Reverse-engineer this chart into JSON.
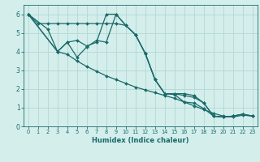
{
  "xlabel": "Humidex (Indice chaleur)",
  "xlim": [
    -0.5,
    23.5
  ],
  "ylim": [
    0,
    6.5
  ],
  "xticks": [
    0,
    1,
    2,
    3,
    4,
    5,
    6,
    7,
    8,
    9,
    10,
    11,
    12,
    13,
    14,
    15,
    16,
    17,
    18,
    19,
    20,
    21,
    22,
    23
  ],
  "yticks": [
    0,
    1,
    2,
    3,
    4,
    5,
    6
  ],
  "bg_color": "#d4eeec",
  "grid_color": "#b2d8d4",
  "line_color": "#1a6b6a",
  "lines": [
    {
      "x": [
        0,
        1,
        2,
        3,
        4,
        5,
        6,
        7,
        8,
        9,
        10,
        11,
        12,
        13,
        14,
        15,
        16,
        17,
        18,
        19,
        20,
        21,
        22,
        23
      ],
      "y": [
        6,
        5.5,
        5.5,
        5.5,
        5.5,
        5.5,
        5.5,
        5.5,
        5.5,
        5.5,
        5.4,
        4.9,
        3.9,
        2.5,
        1.75,
        1.7,
        1.3,
        1.25,
        0.95,
        0.55,
        0.5,
        0.55,
        0.65,
        0.55
      ]
    },
    {
      "x": [
        0,
        2,
        3,
        4,
        5,
        6,
        7,
        8,
        9,
        10,
        11,
        12,
        13,
        14,
        15,
        16,
        17,
        18,
        19,
        20,
        21,
        22,
        23
      ],
      "y": [
        6,
        5.2,
        4.0,
        4.5,
        4.6,
        4.3,
        4.5,
        6.0,
        6.0,
        5.4,
        4.9,
        3.9,
        2.5,
        1.75,
        1.75,
        1.75,
        1.65,
        1.25,
        0.55,
        0.5,
        0.55,
        0.65,
        0.55
      ]
    },
    {
      "x": [
        0,
        3,
        4,
        5,
        6,
        7,
        8,
        9,
        10,
        11,
        12,
        13,
        14,
        15,
        16,
        17,
        18,
        19,
        20,
        21,
        22,
        23
      ],
      "y": [
        6,
        4.0,
        4.5,
        3.7,
        4.25,
        4.6,
        4.5,
        6.0,
        5.4,
        4.9,
        3.9,
        2.5,
        1.75,
        1.75,
        1.65,
        1.55,
        1.25,
        0.55,
        0.5,
        0.55,
        0.65,
        0.55
      ]
    },
    {
      "x": [
        0,
        3,
        4,
        5,
        6,
        7,
        8,
        9,
        10,
        11,
        12,
        13,
        14,
        15,
        16,
        17,
        18,
        19,
        20,
        21,
        22,
        23
      ],
      "y": [
        6,
        4.0,
        3.85,
        3.5,
        3.2,
        2.95,
        2.7,
        2.5,
        2.3,
        2.1,
        1.95,
        1.8,
        1.65,
        1.5,
        1.3,
        1.1,
        0.9,
        0.7,
        0.55,
        0.5,
        0.6,
        0.55
      ]
    }
  ]
}
